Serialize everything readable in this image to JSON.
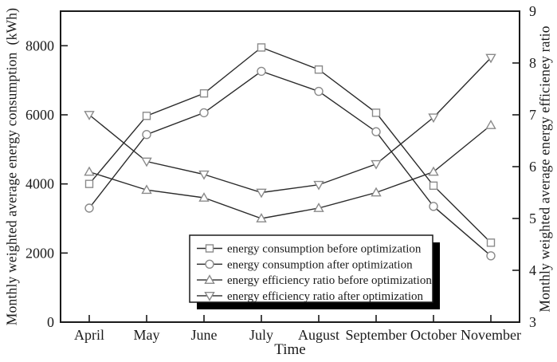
{
  "figure": {
    "background": "#ffffff",
    "frame_color": "#1a1a1a",
    "line_color": "#2b2b2b",
    "marker_stroke_color": "#8a8a8a",
    "marker_fill_color": "#ffffff",
    "text_color": "#1a1a1a",
    "legend_shadow_color": "#000000"
  },
  "chart_data": {
    "type": "line",
    "x_categories": [
      "April",
      "May",
      "June",
      "July",
      "August",
      "September",
      "October",
      "November"
    ],
    "xlabel": "Time",
    "left_axis": {
      "title": "Monthly weighted average energy consumption  (kWh)",
      "tick_labels": [
        "0",
        "2000",
        "4000",
        "6000",
        "8000"
      ],
      "ticks": [
        0,
        2000,
        4000,
        6000,
        8000
      ],
      "range": [
        0,
        9000
      ],
      "grid": false
    },
    "right_axis": {
      "title": "Monthly weighted average energy efficieney ratio",
      "tick_labels": [
        "3",
        "4",
        "5",
        "6",
        "7",
        "8",
        "9"
      ],
      "ticks": [
        3,
        4,
        5,
        6,
        7,
        8,
        9
      ],
      "range": [
        3,
        9
      ],
      "grid": false
    },
    "series": [
      {
        "name": "energy consumption before optimization",
        "axis": "left",
        "marker": "square",
        "values": [
          4000,
          5970,
          6620,
          7950,
          7310,
          6060,
          3950,
          2300
        ]
      },
      {
        "name": "energy consumption after optimization",
        "axis": "left",
        "marker": "circle",
        "values": [
          3300,
          5430,
          6060,
          7260,
          6680,
          5510,
          3350,
          1920
        ]
      },
      {
        "name": "energy efficiency ratio before optimization",
        "axis": "right",
        "marker": "triangle-up",
        "values": [
          5.9,
          5.55,
          5.4,
          5.0,
          5.2,
          5.5,
          5.9,
          6.8
        ]
      },
      {
        "name": "energy efficiency ratio after optimization",
        "axis": "right",
        "marker": "triangle-down",
        "values": [
          7.0,
          6.1,
          5.85,
          5.5,
          5.65,
          6.05,
          6.95,
          8.1
        ]
      }
    ],
    "legend": {
      "position": "inside-bottom-center",
      "has_shadow": true
    }
  }
}
